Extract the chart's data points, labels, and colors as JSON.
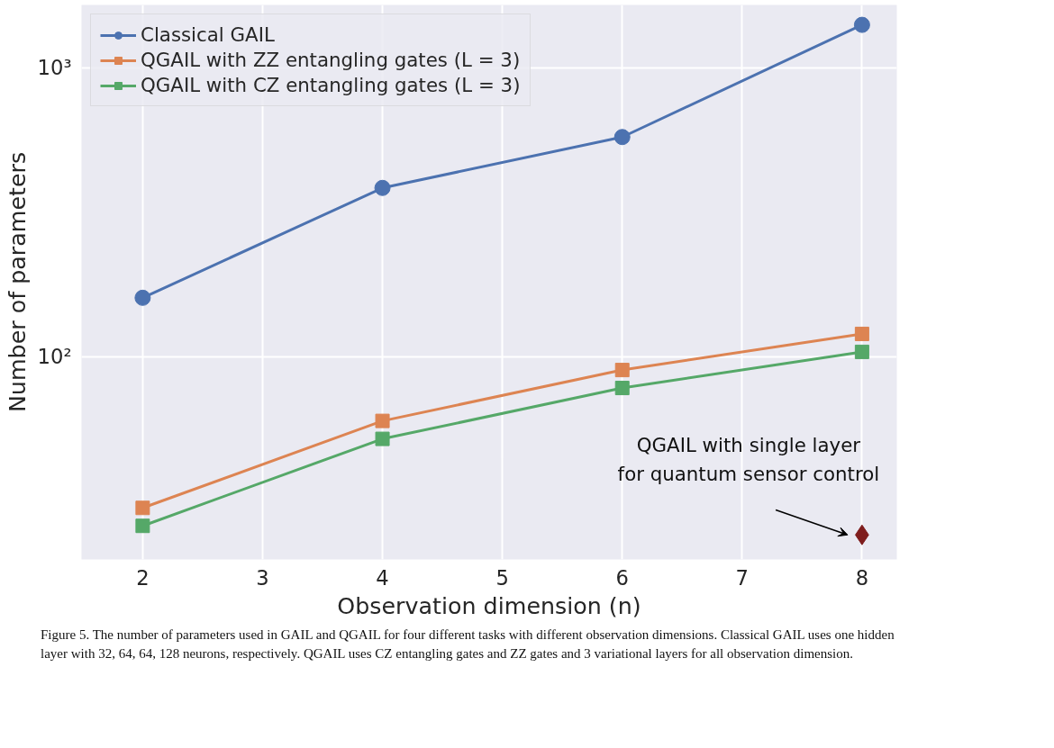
{
  "chart_data": {
    "type": "line",
    "xlabel": "Observation dimension (n)",
    "ylabel": "Number of parameters",
    "x": [
      2,
      4,
      6,
      8
    ],
    "series": [
      {
        "name": "Classical GAIL",
        "color": "#4c72b0",
        "marker": "circle",
        "values": [
          160,
          384,
          576,
          1408
        ]
      },
      {
        "name": "QGAIL with ZZ entangling gates (L = 3)",
        "color": "#dd8452",
        "marker": "square",
        "values": [
          30,
          60,
          90,
          120
        ]
      },
      {
        "name": "QGAIL with CZ entangling gates (L = 3)",
        "color": "#55a868",
        "marker": "square",
        "values": [
          26,
          52,
          78,
          104
        ]
      },
      {
        "type": "scatter",
        "color": "#7f1d1d",
        "marker": "diamond",
        "x": [
          8
        ],
        "values": [
          24.2
        ]
      }
    ],
    "log": "y",
    "xlim": [
      1.49,
      8.29
    ],
    "ylim": [
      19.9,
      1650
    ],
    "xticks": [
      2,
      3,
      4,
      5,
      6,
      7,
      8
    ],
    "yticks": [
      {
        "value": 100,
        "label": "10²"
      },
      {
        "value": 1000,
        "label": "10³"
      }
    ],
    "grid": true,
    "legend": "top left",
    "line_style": "solid",
    "annotations": [
      {
        "text": "QGAIL with single layer\nfor quantum sensor control",
        "x": 8,
        "y": 24.2
      },
      "Figure 5. The number of parameters used in GAIL and QGAIL for four different tasks with different observation dimensions. Classical GAIL uses one hidden layer with 32, 64, 64, 128 neurons, respectively. QGAIL uses CZ entangling gates and ZZ gates and 3 variational layers for all observation dimension."
    ]
  }
}
